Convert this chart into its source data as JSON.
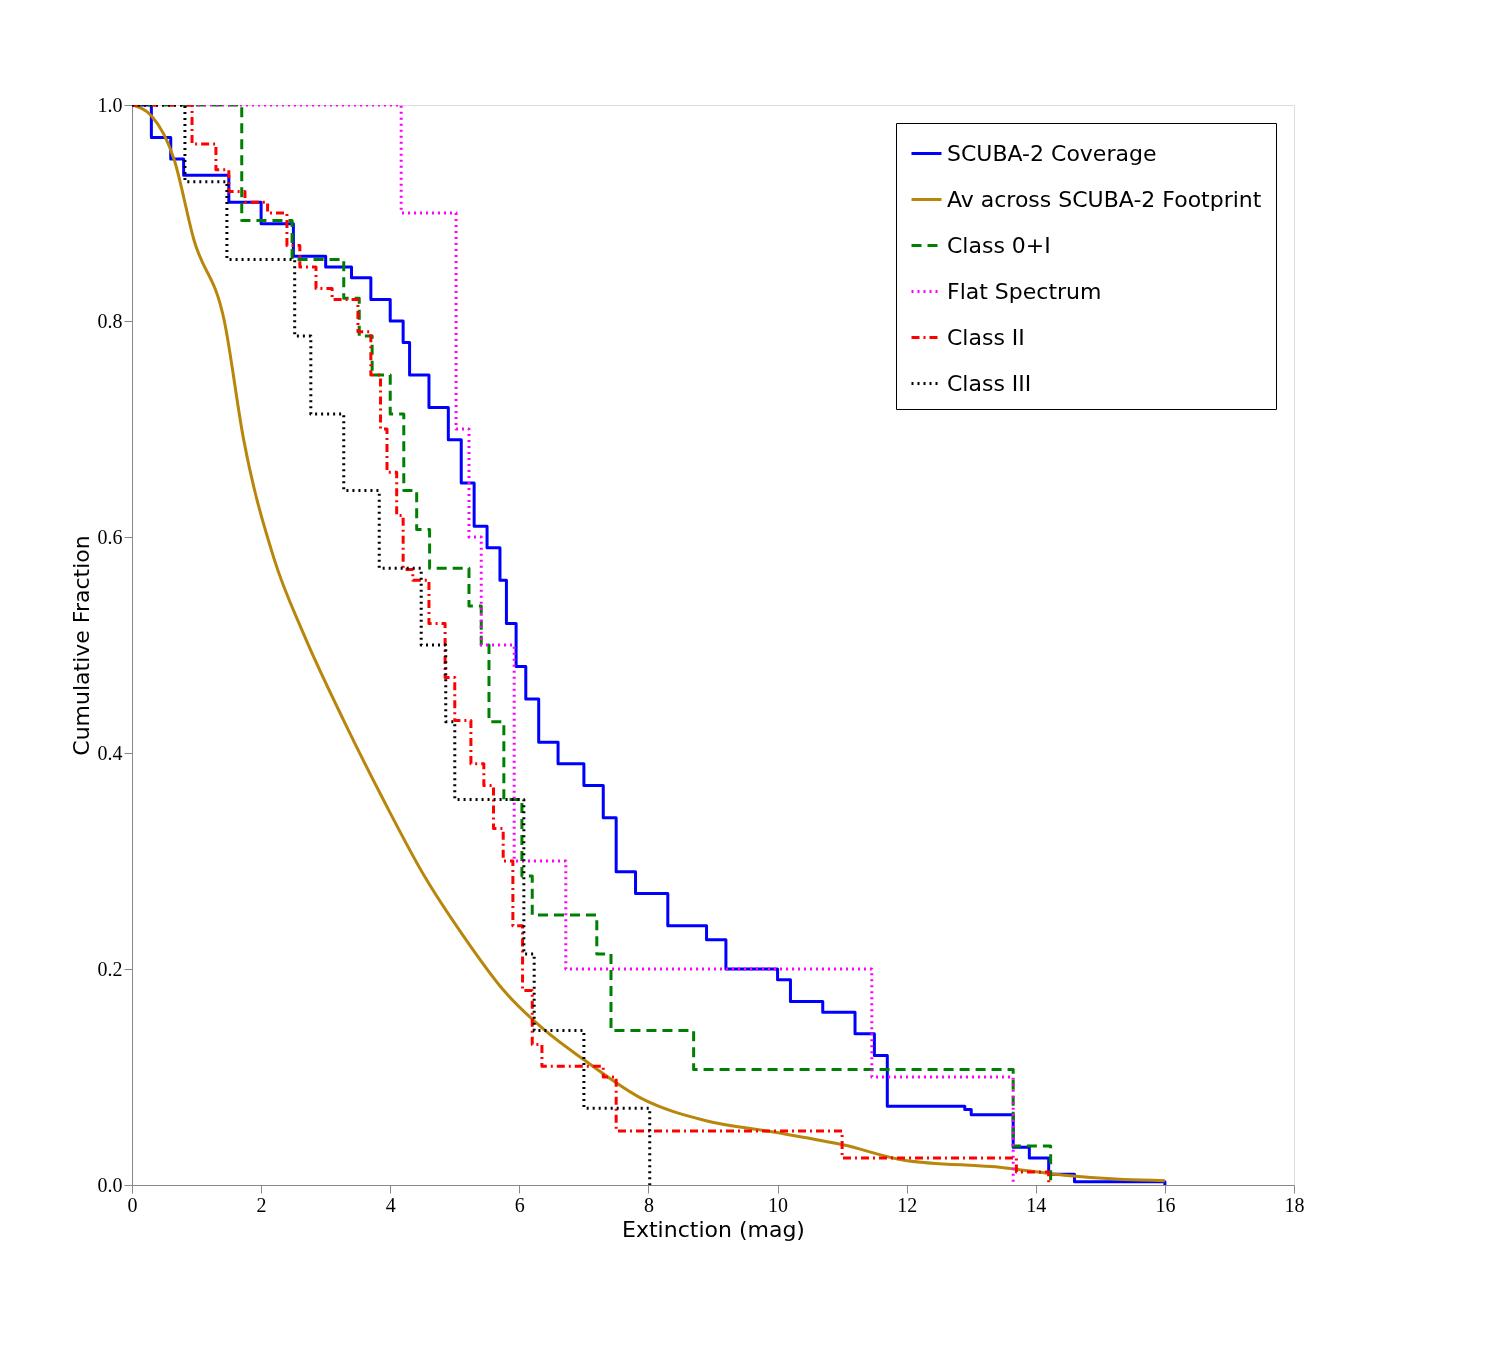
{
  "chart_data": {
    "type": "step",
    "xlabel": "Extinction (mag)",
    "ylabel": "Cumulative Fraction",
    "xlim": [
      0,
      18
    ],
    "xticks": [
      0,
      2,
      4,
      6,
      8,
      10,
      12,
      14,
      16,
      18
    ],
    "ylim": [
      0,
      1
    ],
    "yticks": [
      {
        "value": 0,
        "label": "0.0"
      },
      0.2,
      0.4,
      0.6,
      0.8,
      {
        "value": 1,
        "label": "1.0"
      }
    ],
    "grid": false,
    "legend": "top right",
    "marker": "none",
    "series": [
      {
        "name": "SCUBA-2 Coverage",
        "color": "#0000ff",
        "line_style": "solid",
        "x": [
          0,
          0.3,
          0.6,
          0.8,
          1.5,
          2.0,
          2.5,
          3.0,
          3.4,
          3.7,
          4.0,
          4.2,
          4.3,
          4.6,
          4.9,
          5.1,
          5.3,
          5.5,
          5.7,
          5.8,
          5.95,
          6.1,
          6.3,
          6.6,
          7.0,
          7.3,
          7.5,
          7.8,
          8.3,
          8.9,
          9.2,
          10.0,
          10.2,
          10.7,
          11.2,
          11.5,
          11.7,
          12.9,
          13.0,
          13.65,
          13.9,
          14.2,
          14.6,
          16.0
        ],
        "values": [
          1,
          0.97,
          0.95,
          0.935,
          0.91,
          0.89,
          0.86,
          0.85,
          0.84,
          0.82,
          0.8,
          0.78,
          0.75,
          0.72,
          0.69,
          0.65,
          0.61,
          0.59,
          0.56,
          0.52,
          0.48,
          0.45,
          0.41,
          0.39,
          0.37,
          0.34,
          0.29,
          0.27,
          0.24,
          0.227,
          0.2,
          0.19,
          0.17,
          0.16,
          0.14,
          0.12,
          0.073,
          0.07,
          0.065,
          0.035,
          0.025,
          0.01,
          0.003,
          0
        ]
      },
      {
        "name": "Av across SCUBA-2 Footprint",
        "type": "line",
        "color": "#b8860b",
        "line_style": "solid",
        "x": [
          0,
          0.3,
          0.65,
          0.96,
          1.43,
          1.73,
          2.2,
          2.66,
          3.28,
          3.9,
          4.52,
          5.14,
          5.76,
          6.38,
          7.0,
          7.93,
          8.86,
          9.94,
          11.03,
          11.96,
          13.5,
          14.44,
          15.37,
          16.0
        ],
        "values": [
          1,
          0.99,
          0.95,
          0.875,
          0.8,
          0.69,
          0.58,
          0.51,
          0.43,
          0.356,
          0.287,
          0.23,
          0.18,
          0.144,
          0.116,
          0.079,
          0.06,
          0.049,
          0.037,
          0.023,
          0.016,
          0.009,
          0.005,
          0.004
        ]
      },
      {
        "name": "Class 0+I",
        "color": "#008000",
        "line_style": "dashed",
        "x": [
          0,
          1.7,
          2.48,
          3.28,
          3.52,
          3.72,
          4.0,
          4.21,
          4.41,
          4.61,
          5.22,
          5.41,
          5.53,
          5.76,
          6.04,
          6.2,
          7.2,
          7.42,
          8.7,
          13.65,
          14.23
        ],
        "values": [
          1,
          0.893,
          0.857,
          0.821,
          0.786,
          0.75,
          0.714,
          0.643,
          0.607,
          0.571,
          0.536,
          0.5,
          0.429,
          0.357,
          0.286,
          0.25,
          0.214,
          0.143,
          0.107,
          0.036,
          0
        ]
      },
      {
        "name": "Flat Spectrum",
        "color": "#ff00ff",
        "line_style": "dotted",
        "x": [
          0,
          4.17,
          5.02,
          5.22,
          5.41,
          5.92,
          6.72,
          11.46,
          13.65
        ],
        "values": [
          1,
          0.9,
          0.7,
          0.6,
          0.5,
          0.3,
          0.2,
          0.1,
          0
        ]
      },
      {
        "name": "Class II",
        "color": "#ff0000",
        "line_style": "dashdot",
        "x": [
          0,
          0.93,
          1.3,
          1.5,
          1.75,
          2.1,
          2.4,
          2.6,
          2.85,
          3.1,
          3.5,
          3.7,
          3.85,
          3.95,
          4.1,
          4.2,
          4.35,
          4.6,
          4.85,
          5.0,
          5.25,
          5.45,
          5.6,
          5.75,
          5.9,
          6.05,
          6.2,
          6.35,
          7.3,
          7.5,
          11.0,
          13.7,
          14.2
        ],
        "values": [
          1,
          0.964,
          0.94,
          0.92,
          0.91,
          0.9,
          0.87,
          0.85,
          0.83,
          0.82,
          0.79,
          0.75,
          0.7,
          0.66,
          0.62,
          0.57,
          0.56,
          0.52,
          0.47,
          0.43,
          0.39,
          0.37,
          0.33,
          0.3,
          0.24,
          0.18,
          0.13,
          0.11,
          0.1,
          0.05,
          0.025,
          0.012,
          0
        ]
      },
      {
        "name": "Class III",
        "color": "#000000",
        "line_style": "dotted",
        "x": [
          0,
          0.82,
          1.47,
          2.52,
          2.77,
          3.28,
          3.83,
          4.48,
          4.86,
          5.0,
          6.07,
          6.23,
          7.0,
          8.02
        ],
        "values": [
          1,
          0.929,
          0.857,
          0.786,
          0.714,
          0.643,
          0.571,
          0.5,
          0.429,
          0.357,
          0.214,
          0.143,
          0.071,
          0
        ]
      }
    ]
  }
}
